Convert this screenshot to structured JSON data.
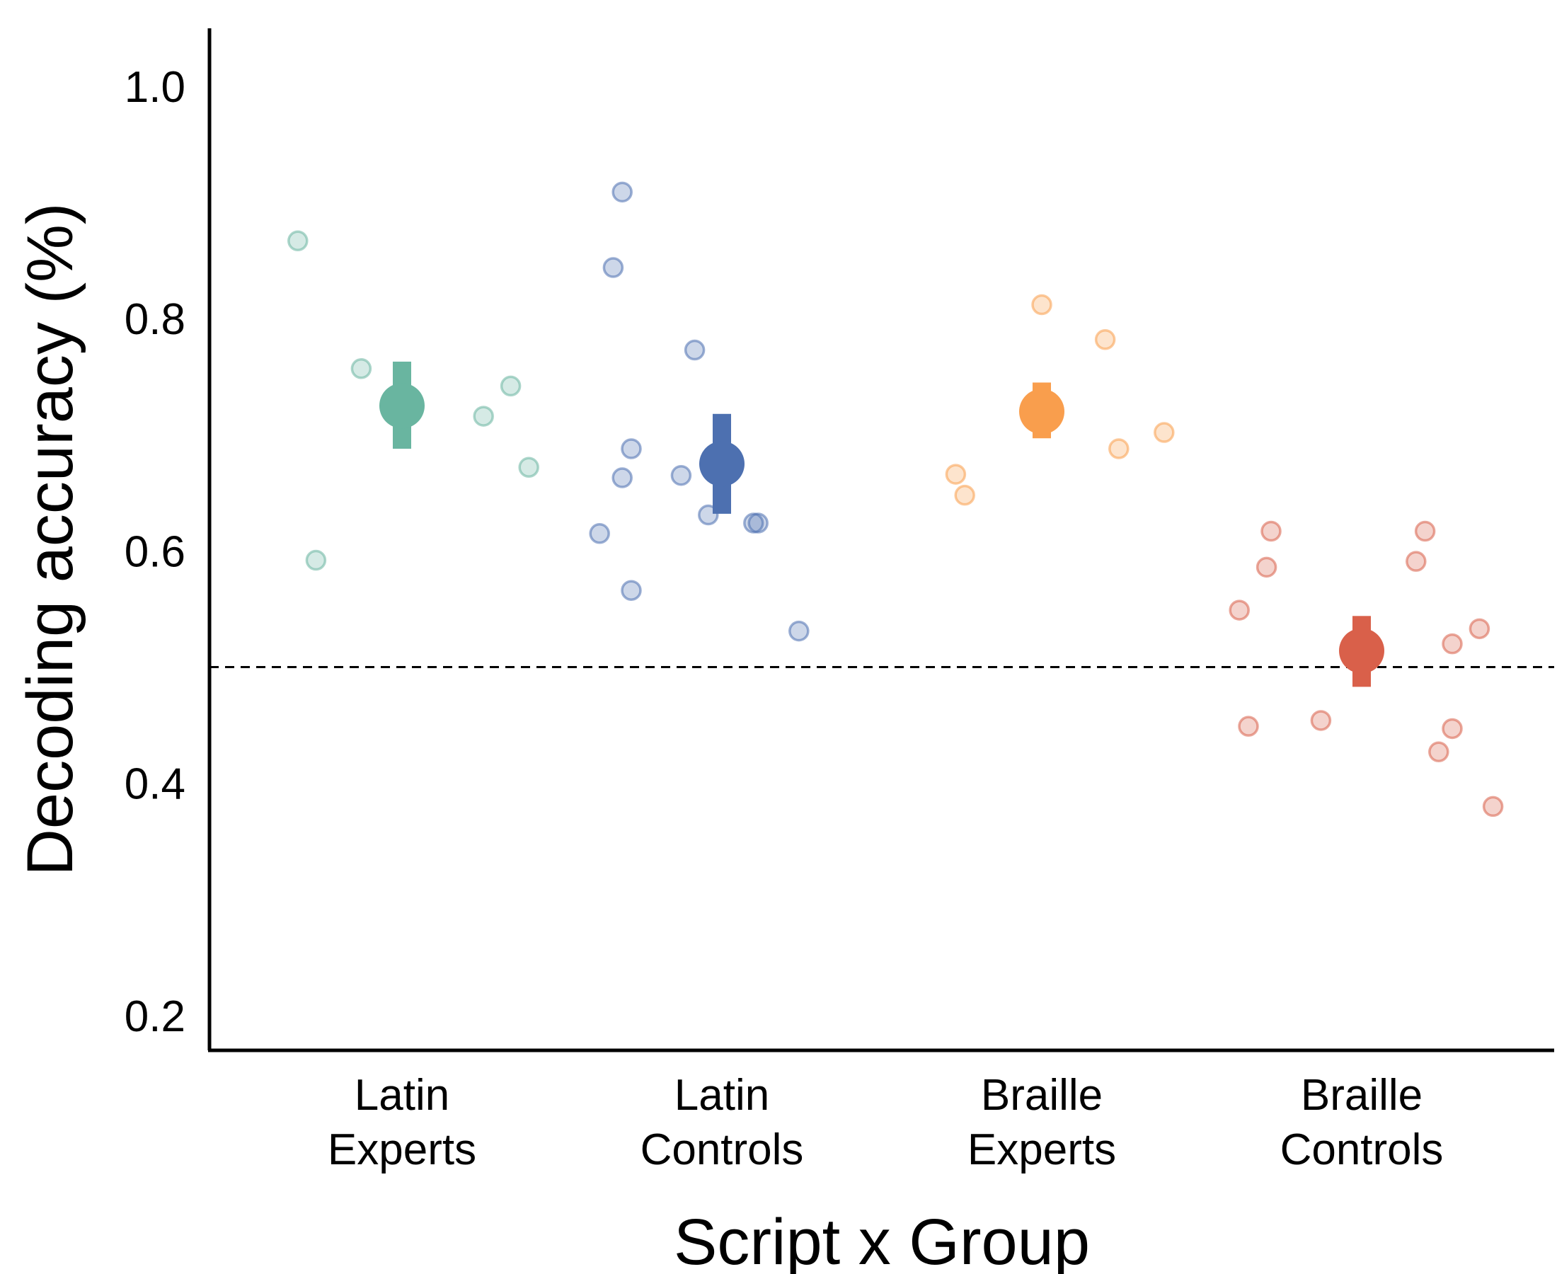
{
  "chart_data": {
    "type": "scatter",
    "title": "",
    "xlabel": "Script x Group",
    "ylabel": "Decoding accuracy (%)",
    "ylim": [
      0.17,
      1.05
    ],
    "yticks": [
      0.2,
      0.4,
      0.6,
      0.8,
      1.0
    ],
    "ytick_labels": [
      "0.2",
      "0.4",
      "0.6",
      "0.8",
      "1.0"
    ],
    "chance_level": 0.5,
    "grid": false,
    "groups": [
      {
        "label_line1": "Latin",
        "label_line2": "Experts",
        "color": "#69b5a0",
        "mean": 0.725,
        "ci": [
          0.688,
          0.763
        ],
        "points": [
          {
            "offset": -0.23,
            "y": 0.867
          },
          {
            "offset": -0.09,
            "y": 0.757
          },
          {
            "offset": 0.18,
            "y": 0.716
          },
          {
            "offset": 0.24,
            "y": 0.742
          },
          {
            "offset": 0.28,
            "y": 0.672
          },
          {
            "offset": -0.19,
            "y": 0.592
          }
        ]
      },
      {
        "label_line1": "Latin",
        "label_line2": "Controls",
        "color": "#4d70b0",
        "mean": 0.675,
        "ci": [
          0.632,
          0.718
        ],
        "points": [
          {
            "offset": -0.22,
            "y": 0.909
          },
          {
            "offset": -0.24,
            "y": 0.844
          },
          {
            "offset": -0.06,
            "y": 0.773
          },
          {
            "offset": -0.2,
            "y": 0.688
          },
          {
            "offset": -0.22,
            "y": 0.663
          },
          {
            "offset": -0.09,
            "y": 0.665
          },
          {
            "offset": -0.03,
            "y": 0.631
          },
          {
            "offset": 0.07,
            "y": 0.624
          },
          {
            "offset": 0.08,
            "y": 0.624
          },
          {
            "offset": -0.27,
            "y": 0.615
          },
          {
            "offset": -0.2,
            "y": 0.566
          },
          {
            "offset": 0.17,
            "y": 0.531
          }
        ]
      },
      {
        "label_line1": "Braille",
        "label_line2": "Experts",
        "color": "#f99e4d",
        "mean": 0.72,
        "ci": [
          0.697,
          0.745
        ],
        "points": [
          {
            "offset": 0.0,
            "y": 0.812
          },
          {
            "offset": 0.14,
            "y": 0.782
          },
          {
            "offset": 0.27,
            "y": 0.702
          },
          {
            "offset": 0.17,
            "y": 0.688
          },
          {
            "offset": -0.19,
            "y": 0.666
          },
          {
            "offset": -0.17,
            "y": 0.648
          }
        ]
      },
      {
        "label_line1": "Braille",
        "label_line2": "Controls",
        "color": "#d9604a",
        "mean": 0.514,
        "ci": [
          0.483,
          0.544
        ],
        "points": [
          {
            "offset": -0.2,
            "y": 0.617
          },
          {
            "offset": 0.14,
            "y": 0.617
          },
          {
            "offset": -0.21,
            "y": 0.586
          },
          {
            "offset": 0.12,
            "y": 0.591
          },
          {
            "offset": -0.27,
            "y": 0.549
          },
          {
            "offset": 0.26,
            "y": 0.533
          },
          {
            "offset": 0.2,
            "y": 0.52
          },
          {
            "offset": -0.25,
            "y": 0.449
          },
          {
            "offset": -0.09,
            "y": 0.454
          },
          {
            "offset": 0.2,
            "y": 0.447
          },
          {
            "offset": 0.17,
            "y": 0.427
          },
          {
            "offset": 0.29,
            "y": 0.38
          }
        ]
      }
    ]
  }
}
